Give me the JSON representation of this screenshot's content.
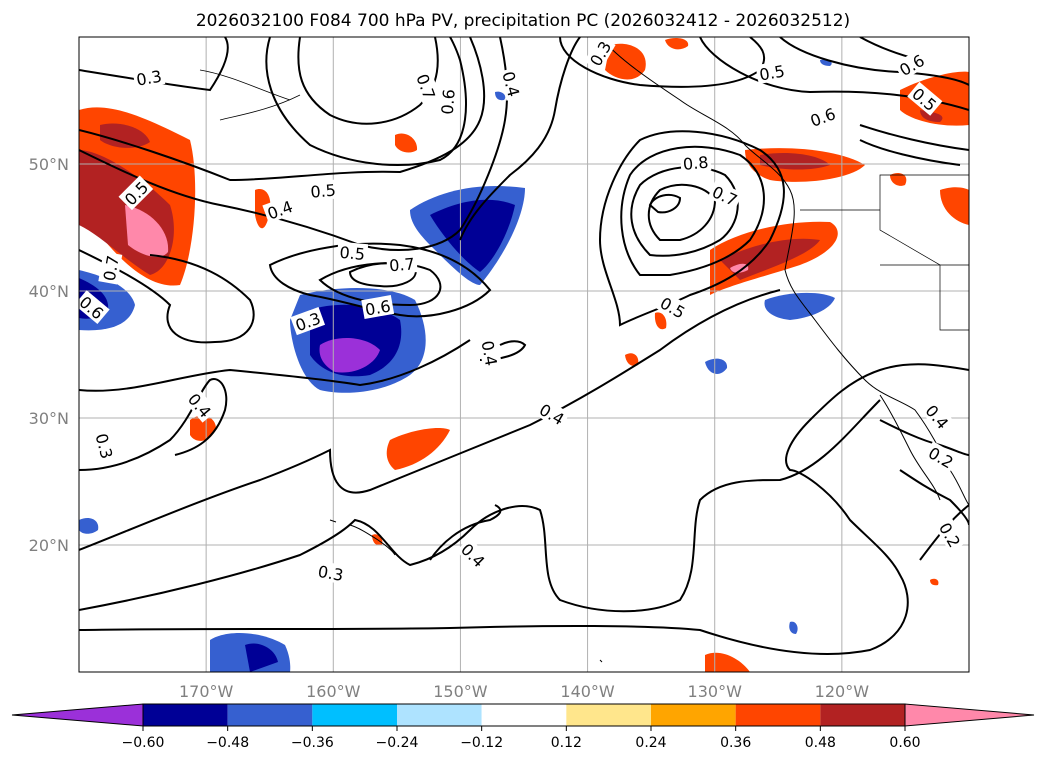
{
  "chart_data": {
    "type": "contour",
    "title": "2026032100 F084 700 hPa PV, precipitation PC (2026032412 - 2026032512)",
    "lon_range": [
      -180,
      -110
    ],
    "lat_range": [
      10,
      60
    ],
    "xticks": [
      {
        "lon": -170,
        "label": "170°W"
      },
      {
        "lon": -160,
        "label": "160°W"
      },
      {
        "lon": -150,
        "label": "150°W"
      },
      {
        "lon": -140,
        "label": "140°W"
      },
      {
        "lon": -130,
        "label": "130°W"
      },
      {
        "lon": -120,
        "label": "120°W"
      }
    ],
    "yticks": [
      {
        "lat": 20,
        "label": "20°N"
      },
      {
        "lat": 30,
        "label": "30°N"
      },
      {
        "lat": 40,
        "label": "40°N"
      },
      {
        "lat": 50,
        "label": "50°N"
      }
    ],
    "grid": true,
    "colorbar": {
      "levels": [
        -0.6,
        -0.48,
        -0.36,
        -0.24,
        -0.12,
        0.12,
        0.24,
        0.36,
        0.48,
        0.6
      ],
      "tick_labels": [
        "−0.60",
        "−0.48",
        "−0.36",
        "−0.24",
        "−0.12",
        "0.12",
        "0.24",
        "0.36",
        "0.48",
        "0.60"
      ],
      "colors": [
        "#9b30d9",
        "#000096",
        "#3660d0",
        "#00bfff",
        "#aee3ff",
        "#ffffff",
        "#ffe68c",
        "#ffa500",
        "#ff4500",
        "#b22222",
        "#ff88aa"
      ],
      "extend": "both"
    },
    "contour_labels": [
      {
        "lon": -174.5,
        "lat": 56.8,
        "text": "0.3",
        "rot": 10
      },
      {
        "lon": -160.8,
        "lat": 47.9,
        "text": "0.5",
        "rot": 5
      },
      {
        "lon": -164.2,
        "lat": 46.4,
        "text": "0.4",
        "rot": 20
      },
      {
        "lon": -175.5,
        "lat": 47.7,
        "text": "0.5",
        "rot": 45
      },
      {
        "lon": -177.5,
        "lat": 41.8,
        "text": "0.7",
        "rot": 80
      },
      {
        "lon": -179.0,
        "lat": 38.7,
        "text": "0.6",
        "rot": -40
      },
      {
        "lon": -162.0,
        "lat": 37.6,
        "text": "0.3",
        "rot": 20
      },
      {
        "lon": -156.5,
        "lat": 38.7,
        "text": "0.6",
        "rot": 10
      },
      {
        "lon": -154.6,
        "lat": 42.1,
        "text": "0.7",
        "rot": 5
      },
      {
        "lon": -158.5,
        "lat": 43.0,
        "text": "0.5",
        "rot": -5
      },
      {
        "lon": -170.5,
        "lat": 31.0,
        "text": "0.4",
        "rot": -50
      },
      {
        "lon": -178.0,
        "lat": 27.8,
        "text": "0.3",
        "rot": -75
      },
      {
        "lon": -151.0,
        "lat": 54.9,
        "text": "0.6",
        "rot": 85
      },
      {
        "lon": -152.7,
        "lat": 56.1,
        "text": "0.7",
        "rot": -70
      },
      {
        "lon": -146.0,
        "lat": 56.3,
        "text": "0.4",
        "rot": -75
      },
      {
        "lon": -139.0,
        "lat": 58.7,
        "text": "0.3",
        "rot": 60
      },
      {
        "lon": -125.5,
        "lat": 57.2,
        "text": "0.5",
        "rot": 10
      },
      {
        "lon": -114.5,
        "lat": 57.8,
        "text": "0.6",
        "rot": 30
      },
      {
        "lon": -113.5,
        "lat": 55.1,
        "text": "0.5",
        "rot": -40
      },
      {
        "lon": -121.5,
        "lat": 53.7,
        "text": "0.6",
        "rot": 20
      },
      {
        "lon": -131.5,
        "lat": 50.1,
        "text": "0.8",
        "rot": 5
      },
      {
        "lon": -129.2,
        "lat": 47.5,
        "text": "0.7",
        "rot": -25
      },
      {
        "lon": -133.3,
        "lat": 38.7,
        "text": "0.5",
        "rot": -30
      },
      {
        "lon": -147.7,
        "lat": 35.1,
        "text": "0.4",
        "rot": -80
      },
      {
        "lon": -142.8,
        "lat": 30.3,
        "text": "0.4",
        "rot": -30
      },
      {
        "lon": -160.2,
        "lat": 17.8,
        "text": "0.3",
        "rot": -10
      },
      {
        "lon": -149.0,
        "lat": 19.2,
        "text": "0.4",
        "rot": -45
      },
      {
        "lon": -112.5,
        "lat": 30.1,
        "text": "0.4",
        "rot": -50
      },
      {
        "lon": -112.2,
        "lat": 26.9,
        "text": "0.2",
        "rot": -30
      },
      {
        "lon": -111.5,
        "lat": 20.8,
        "text": "0.2",
        "rot": -60
      }
    ]
  }
}
